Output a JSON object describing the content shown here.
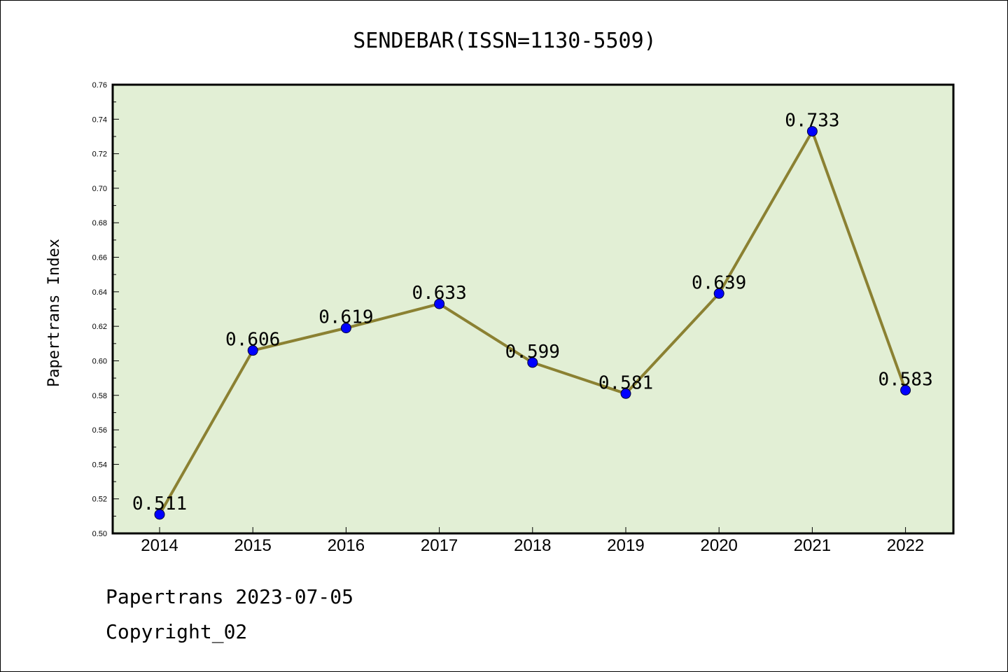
{
  "footer": {
    "line1": "Papertrans 2023-07-05",
    "line2": "Copyright_02"
  },
  "colors": {
    "plot_background": "#e2efd5",
    "line": "#8b8132",
    "marker": "#0000ff",
    "frame": "#000000"
  },
  "chart_data": {
    "type": "line",
    "title": "SENDEBAR(ISSN=1130-5509)",
    "xlabel": "",
    "ylabel": "Papertrans Index",
    "categories": [
      "2014",
      "2015",
      "2016",
      "2017",
      "2018",
      "2019",
      "2020",
      "2021",
      "2022"
    ],
    "series": [
      {
        "values": [
          0.511,
          0.606,
          0.619,
          0.633,
          0.599,
          0.581,
          0.639,
          0.733,
          0.583
        ],
        "data_labels": [
          "0.511",
          "0.606",
          "0.619",
          "0.633",
          "0.599",
          "0.581",
          "0.639",
          "0.733",
          "0.583"
        ]
      }
    ],
    "ylim": [
      0.5,
      0.76
    ],
    "yticks": [
      "0.50",
      "0.52",
      "0.54",
      "0.56",
      "0.58",
      "0.60",
      "0.62",
      "0.64",
      "0.66",
      "0.68",
      "0.70",
      "0.72",
      "0.74",
      "0.76"
    ],
    "grid": false,
    "legend": "none",
    "marker": "circle"
  }
}
